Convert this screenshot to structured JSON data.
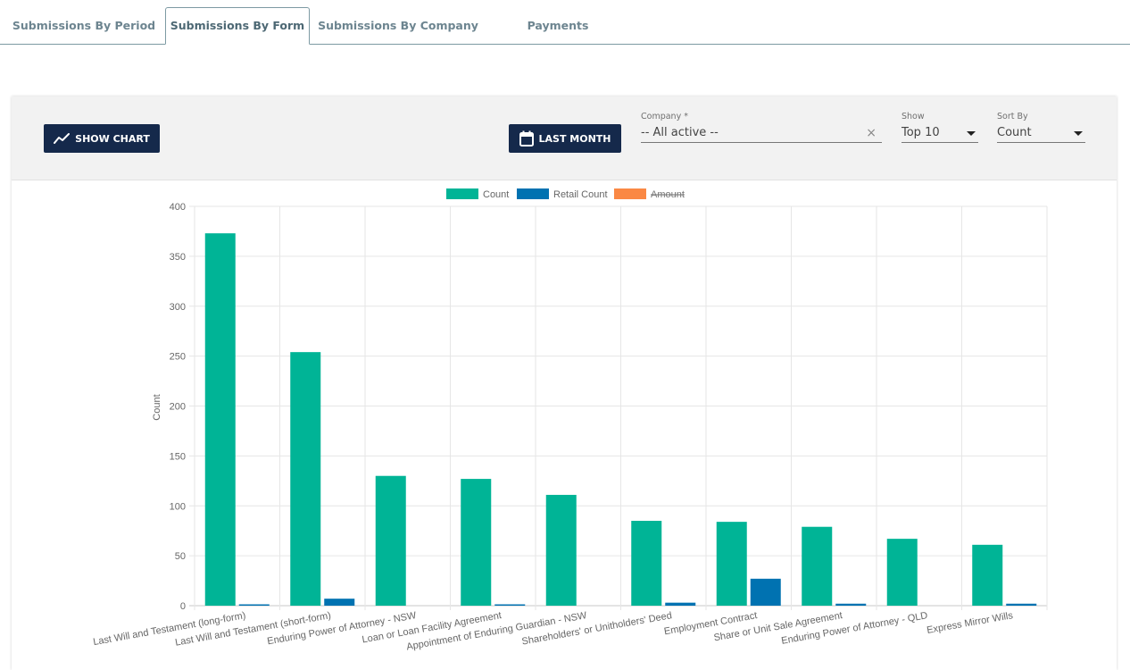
{
  "tabs": [
    {
      "label": "Submissions By Period",
      "active": false
    },
    {
      "label": "Submissions By Form",
      "active": true
    },
    {
      "label": "Submissions By Company",
      "active": false
    },
    {
      "label": "Payments",
      "active": false
    }
  ],
  "toolbar": {
    "show_chart_label": "SHOW CHART",
    "last_month_label": "LAST MONTH",
    "company": {
      "label": "Company *",
      "value": "-- All active --",
      "clear_icon": "×"
    },
    "show": {
      "label": "Show",
      "value": "Top 10"
    },
    "sort_by": {
      "label": "Sort By",
      "value": "Count"
    }
  },
  "colors": {
    "count": "#00b496",
    "retail_count": "#0072b1",
    "amount": "#fa8844",
    "button_bg": "#15294b"
  },
  "chart_data": {
    "type": "bar",
    "ylabel": "Count",
    "ylim": [
      0,
      400
    ],
    "yticks": [
      0,
      50,
      100,
      150,
      200,
      250,
      300,
      350,
      400
    ],
    "legend": [
      {
        "name": "Count",
        "hidden": false
      },
      {
        "name": "Retail Count",
        "hidden": false
      },
      {
        "name": "Amount",
        "hidden": true
      }
    ],
    "legend_position": "top",
    "grid": true,
    "categories": [
      "Last Will and Testament (long-form)",
      "Last Will and Testament (short-form)",
      "Enduring Power of Attorney - NSW",
      "Loan or Loan Facility Agreement",
      "Appointment of Enduring Guardian - NSW",
      "Shareholders' or Unitholders' Deed",
      "Employment Contract",
      "Share or Unit Sale Agreement",
      "Enduring Power of Attorney - QLD",
      "Express Mirror Wills"
    ],
    "series": [
      {
        "name": "Count",
        "values": [
          373,
          254,
          130,
          127,
          111,
          85,
          84,
          79,
          67,
          61
        ]
      },
      {
        "name": "Retail Count",
        "values": [
          1,
          7,
          0,
          1,
          0,
          3,
          27,
          2,
          0,
          2
        ]
      }
    ]
  }
}
